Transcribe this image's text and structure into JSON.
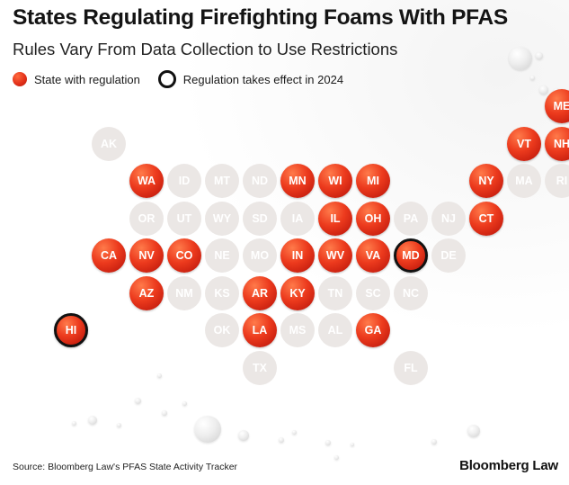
{
  "title": "States Regulating Firefighting Foams With PFAS",
  "subtitle": "Rules Vary From Data Collection to Use Restrictions",
  "legend": {
    "regulated_label": "State with regulation",
    "ring_label": "Regulation takes effect in 2024"
  },
  "colors": {
    "regulated": "#e3311a",
    "unregulated": "#ebe7e5",
    "ring": "#121212"
  },
  "states": [
    {
      "abbr": "ME",
      "row": 0,
      "col": 12,
      "regulated": true,
      "effective_2024": false
    },
    {
      "abbr": "AK",
      "row": 1,
      "col": 0,
      "regulated": false,
      "effective_2024": false
    },
    {
      "abbr": "VT",
      "row": 1,
      "col": 11,
      "regulated": true,
      "effective_2024": false
    },
    {
      "abbr": "NH",
      "row": 1,
      "col": 12,
      "regulated": true,
      "effective_2024": false
    },
    {
      "abbr": "WA",
      "row": 2,
      "col": 1,
      "regulated": true,
      "effective_2024": false
    },
    {
      "abbr": "ID",
      "row": 2,
      "col": 2,
      "regulated": false,
      "effective_2024": false
    },
    {
      "abbr": "MT",
      "row": 2,
      "col": 3,
      "regulated": false,
      "effective_2024": false
    },
    {
      "abbr": "ND",
      "row": 2,
      "col": 4,
      "regulated": false,
      "effective_2024": false
    },
    {
      "abbr": "MN",
      "row": 2,
      "col": 5,
      "regulated": true,
      "effective_2024": false
    },
    {
      "abbr": "WI",
      "row": 2,
      "col": 6,
      "regulated": true,
      "effective_2024": false
    },
    {
      "abbr": "MI",
      "row": 2,
      "col": 7,
      "regulated": true,
      "effective_2024": false
    },
    {
      "abbr": "NY",
      "row": 2,
      "col": 10,
      "regulated": true,
      "effective_2024": false
    },
    {
      "abbr": "MA",
      "row": 2,
      "col": 11,
      "regulated": false,
      "effective_2024": false
    },
    {
      "abbr": "RI",
      "row": 2,
      "col": 12,
      "regulated": false,
      "effective_2024": false
    },
    {
      "abbr": "OR",
      "row": 3,
      "col": 1,
      "regulated": false,
      "effective_2024": false
    },
    {
      "abbr": "UT",
      "row": 3,
      "col": 2,
      "regulated": false,
      "effective_2024": false
    },
    {
      "abbr": "WY",
      "row": 3,
      "col": 3,
      "regulated": false,
      "effective_2024": false
    },
    {
      "abbr": "SD",
      "row": 3,
      "col": 4,
      "regulated": false,
      "effective_2024": false
    },
    {
      "abbr": "IA",
      "row": 3,
      "col": 5,
      "regulated": false,
      "effective_2024": false
    },
    {
      "abbr": "IL",
      "row": 3,
      "col": 6,
      "regulated": true,
      "effective_2024": false
    },
    {
      "abbr": "OH",
      "row": 3,
      "col": 7,
      "regulated": true,
      "effective_2024": false
    },
    {
      "abbr": "PA",
      "row": 3,
      "col": 8,
      "regulated": false,
      "effective_2024": false
    },
    {
      "abbr": "NJ",
      "row": 3,
      "col": 9,
      "regulated": false,
      "effective_2024": false
    },
    {
      "abbr": "CT",
      "row": 3,
      "col": 10,
      "regulated": true,
      "effective_2024": false
    },
    {
      "abbr": "CA",
      "row": 4,
      "col": 0,
      "regulated": true,
      "effective_2024": false
    },
    {
      "abbr": "NV",
      "row": 4,
      "col": 1,
      "regulated": true,
      "effective_2024": false
    },
    {
      "abbr": "CO",
      "row": 4,
      "col": 2,
      "regulated": true,
      "effective_2024": false
    },
    {
      "abbr": "NE",
      "row": 4,
      "col": 3,
      "regulated": false,
      "effective_2024": false
    },
    {
      "abbr": "MO",
      "row": 4,
      "col": 4,
      "regulated": false,
      "effective_2024": false
    },
    {
      "abbr": "IN",
      "row": 4,
      "col": 5,
      "regulated": true,
      "effective_2024": false
    },
    {
      "abbr": "WV",
      "row": 4,
      "col": 6,
      "regulated": true,
      "effective_2024": false
    },
    {
      "abbr": "VA",
      "row": 4,
      "col": 7,
      "regulated": true,
      "effective_2024": false
    },
    {
      "abbr": "MD",
      "row": 4,
      "col": 8,
      "regulated": true,
      "effective_2024": true
    },
    {
      "abbr": "DE",
      "row": 4,
      "col": 9,
      "regulated": false,
      "effective_2024": false
    },
    {
      "abbr": "AZ",
      "row": 5,
      "col": 1,
      "regulated": true,
      "effective_2024": false
    },
    {
      "abbr": "NM",
      "row": 5,
      "col": 2,
      "regulated": false,
      "effective_2024": false
    },
    {
      "abbr": "KS",
      "row": 5,
      "col": 3,
      "regulated": false,
      "effective_2024": false
    },
    {
      "abbr": "AR",
      "row": 5,
      "col": 4,
      "regulated": true,
      "effective_2024": false
    },
    {
      "abbr": "KY",
      "row": 5,
      "col": 5,
      "regulated": true,
      "effective_2024": false
    },
    {
      "abbr": "TN",
      "row": 5,
      "col": 6,
      "regulated": false,
      "effective_2024": false
    },
    {
      "abbr": "SC",
      "row": 5,
      "col": 7,
      "regulated": false,
      "effective_2024": false
    },
    {
      "abbr": "NC",
      "row": 5,
      "col": 8,
      "regulated": false,
      "effective_2024": false
    },
    {
      "abbr": "HI",
      "row": 6,
      "col": -1,
      "regulated": true,
      "effective_2024": true
    },
    {
      "abbr": "OK",
      "row": 6,
      "col": 3,
      "regulated": false,
      "effective_2024": false
    },
    {
      "abbr": "LA",
      "row": 6,
      "col": 4,
      "regulated": true,
      "effective_2024": false
    },
    {
      "abbr": "MS",
      "row": 6,
      "col": 5,
      "regulated": false,
      "effective_2024": false
    },
    {
      "abbr": "AL",
      "row": 6,
      "col": 6,
      "regulated": false,
      "effective_2024": false
    },
    {
      "abbr": "GA",
      "row": 6,
      "col": 7,
      "regulated": true,
      "effective_2024": false
    },
    {
      "abbr": "TX",
      "row": 7,
      "col": 4,
      "regulated": false,
      "effective_2024": false
    },
    {
      "abbr": "FL",
      "row": 7,
      "col": 8,
      "regulated": false,
      "effective_2024": false
    }
  ],
  "source": "Source: Bloomberg Law's PFAS State Activity Tracker",
  "brand": "Bloomberg Law"
}
